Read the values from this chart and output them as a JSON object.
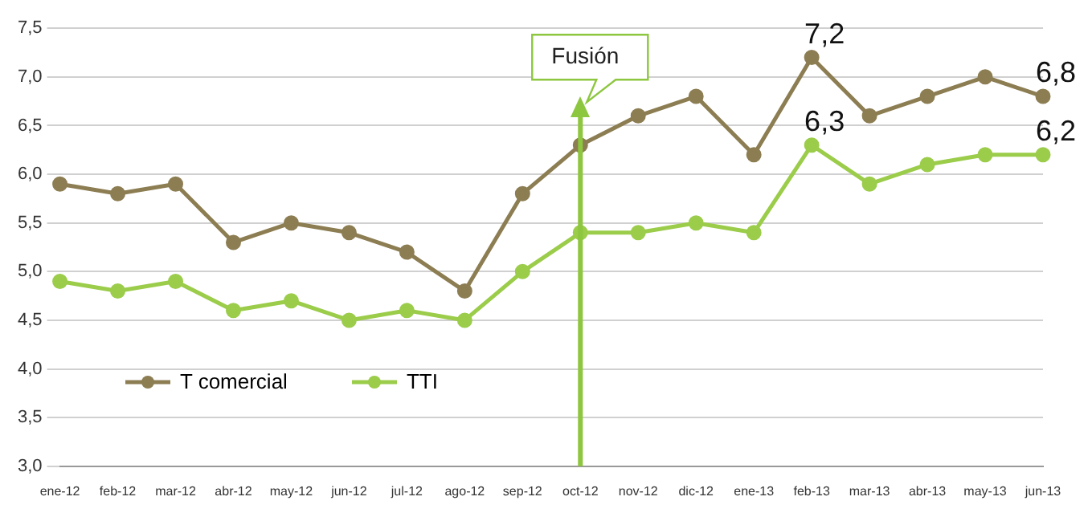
{
  "chart_data": {
    "type": "line",
    "categories": [
      "ene-12",
      "feb-12",
      "mar-12",
      "abr-12",
      "may-12",
      "jun-12",
      "jul-12",
      "ago-12",
      "sep-12",
      "oct-12",
      "nov-12",
      "dic-12",
      "ene-13",
      "feb-13",
      "mar-13",
      "abr-13",
      "may-13",
      "jun-13"
    ],
    "series": [
      {
        "name": "T comercial",
        "color": "#8c7d52",
        "values": [
          5.9,
          5.8,
          5.9,
          5.3,
          5.5,
          5.4,
          5.2,
          4.8,
          5.8,
          6.3,
          6.6,
          6.8,
          6.2,
          7.2,
          6.6,
          6.8,
          7.0,
          6.8
        ],
        "value_labels": [
          null,
          null,
          null,
          null,
          null,
          null,
          null,
          null,
          null,
          null,
          null,
          null,
          null,
          "7,2",
          null,
          null,
          null,
          "6,8"
        ]
      },
      {
        "name": "TTI",
        "color": "#9bcc4a",
        "values": [
          4.9,
          4.8,
          4.9,
          4.6,
          4.7,
          4.5,
          4.6,
          4.5,
          5.0,
          5.4,
          5.4,
          5.5,
          5.4,
          6.3,
          5.9,
          6.1,
          6.2,
          6.2
        ],
        "value_labels": [
          null,
          null,
          null,
          null,
          null,
          null,
          null,
          null,
          null,
          null,
          null,
          null,
          null,
          "6,3",
          null,
          null,
          null,
          "6,2"
        ]
      }
    ],
    "ylim": [
      3,
      7.5
    ],
    "yticks": [
      {
        "value": 3,
        "label": "3,0"
      },
      {
        "value": 3.5,
        "label": "3,5"
      },
      {
        "value": 4,
        "label": "4,0"
      },
      {
        "value": 4.5,
        "label": "4,5"
      },
      {
        "value": 5,
        "label": "5,0"
      },
      {
        "value": 5.5,
        "label": "5,5"
      },
      {
        "value": 6,
        "label": "6,0"
      },
      {
        "value": 6.5,
        "label": "6,5"
      },
      {
        "value": 7,
        "label": "7,0"
      },
      {
        "value": 7.5,
        "label": "7,5"
      }
    ],
    "ref_lines": [
      {
        "axis": "x",
        "value": "oct-12",
        "label": "Fusión",
        "color": "#8dc63f"
      }
    ],
    "grid": "y",
    "legend": "bottom left",
    "marker": "circle",
    "line_style": "solid"
  }
}
